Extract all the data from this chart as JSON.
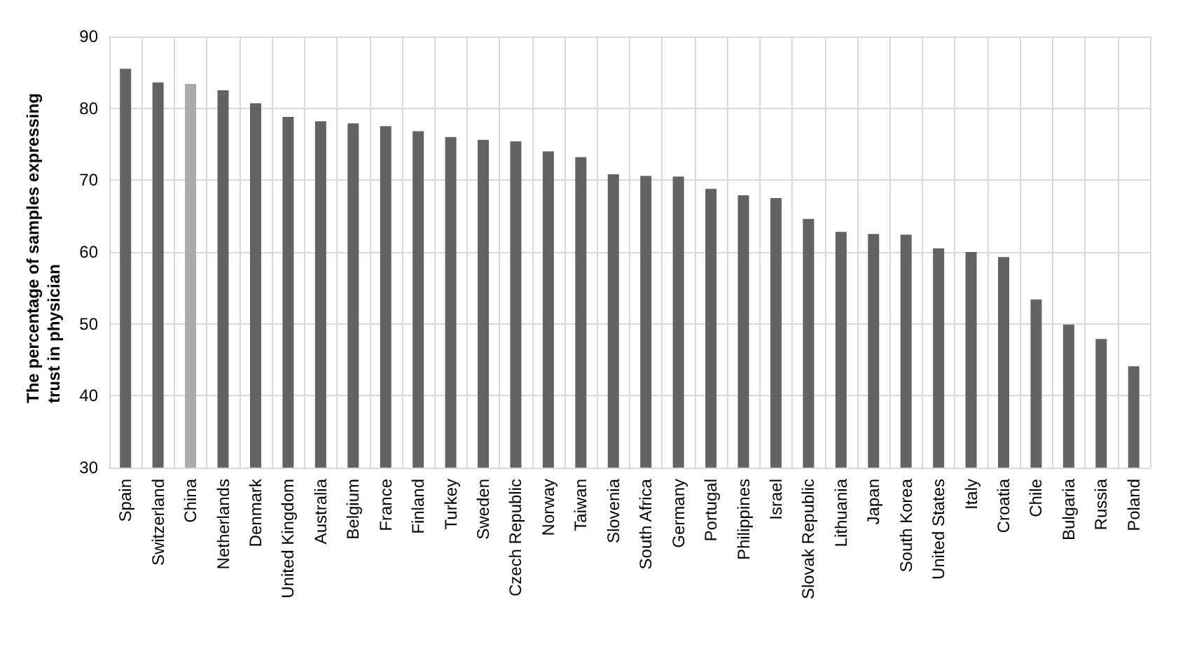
{
  "chart_data": {
    "type": "bar",
    "ylabel": "The percentage of samples expressing trust in physician",
    "categories": [
      "Spain",
      "Switzerland",
      "China",
      "Netherlands",
      "Denmark",
      "United Kingdom",
      "Australia",
      "Belgium",
      "France",
      "Finland",
      "Turkey",
      "Sweden",
      "Czech Republic",
      "Norway",
      "Taiwan",
      "Slovenia",
      "South Africa",
      "Germany",
      "Portugal",
      "Philippines",
      "Israel",
      "Slovak Republic",
      "Lithuania",
      "Japan",
      "South Korea",
      "United States",
      "Italy",
      "Croatia",
      "Chile",
      "Bulgaria",
      "Russia",
      "Poland"
    ],
    "values": [
      85.5,
      83.6,
      83.4,
      82.5,
      80.7,
      78.8,
      78.2,
      77.9,
      77.5,
      76.8,
      76.0,
      75.6,
      75.4,
      74.0,
      73.2,
      70.8,
      70.6,
      70.5,
      68.8,
      67.9,
      67.5,
      64.6,
      62.8,
      62.5,
      62.4,
      60.5,
      60.0,
      59.3,
      53.4,
      49.9,
      47.9,
      44.1
    ],
    "colors": [
      "#636363",
      "#636363",
      "#aaaaaa",
      "#636363",
      "#636363",
      "#636363",
      "#636363",
      "#636363",
      "#636363",
      "#636363",
      "#636363",
      "#636363",
      "#636363",
      "#636363",
      "#636363",
      "#636363",
      "#636363",
      "#636363",
      "#636363",
      "#636363",
      "#636363",
      "#636363",
      "#636363",
      "#636363",
      "#636363",
      "#636363",
      "#636363",
      "#636363",
      "#636363",
      "#636363",
      "#636363",
      "#636363"
    ],
    "ylim": [
      30,
      90
    ],
    "yticks": [
      30,
      40,
      50,
      60,
      70,
      80,
      90
    ],
    "grid": true
  }
}
